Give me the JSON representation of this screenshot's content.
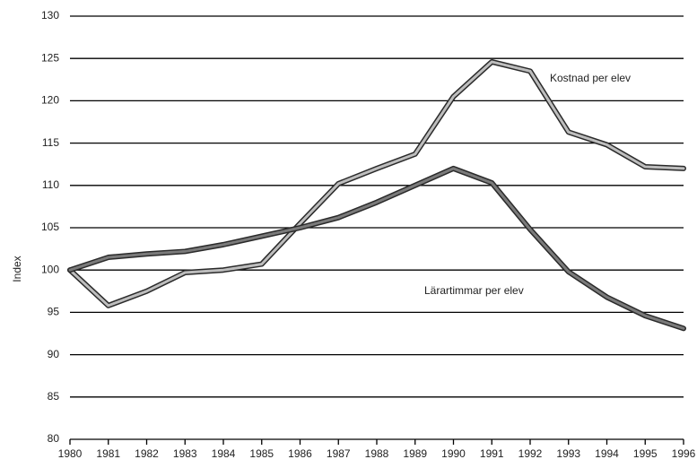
{
  "chart_data": {
    "type": "line",
    "y_label": "Index",
    "x": [
      1980,
      1981,
      1982,
      1983,
      1984,
      1985,
      1986,
      1987,
      1988,
      1989,
      1990,
      1991,
      1992,
      1993,
      1994,
      1995,
      1996
    ],
    "series": [
      {
        "name": "Kostnad per elev",
        "color": "#bdbdbd",
        "values": [
          100,
          95.8,
          97.5,
          99.7,
          100,
          100.7,
          105.5,
          110.2,
          112,
          113.7,
          120.5,
          124.6,
          123.5,
          116.3,
          114.8,
          112.2,
          112
        ]
      },
      {
        "name": "Lärartimmar per elev",
        "color": "#7a7a7a",
        "values": [
          100,
          101.5,
          101.9,
          102.2,
          103,
          104,
          105,
          106.2,
          108,
          110,
          112,
          110.3,
          104.8,
          99.8,
          96.8,
          94.6,
          93.1
        ]
      }
    ],
    "xlim": [
      1980,
      1996
    ],
    "xticks": [
      1980,
      1981,
      1982,
      1983,
      1984,
      1985,
      1986,
      1987,
      1988,
      1989,
      1990,
      1991,
      1992,
      1993,
      1994,
      1995,
      1996
    ],
    "ylim": [
      80,
      130
    ],
    "yticks": [
      80,
      85,
      90,
      95,
      100,
      105,
      110,
      115,
      120,
      125,
      130
    ],
    "grid": true
  }
}
